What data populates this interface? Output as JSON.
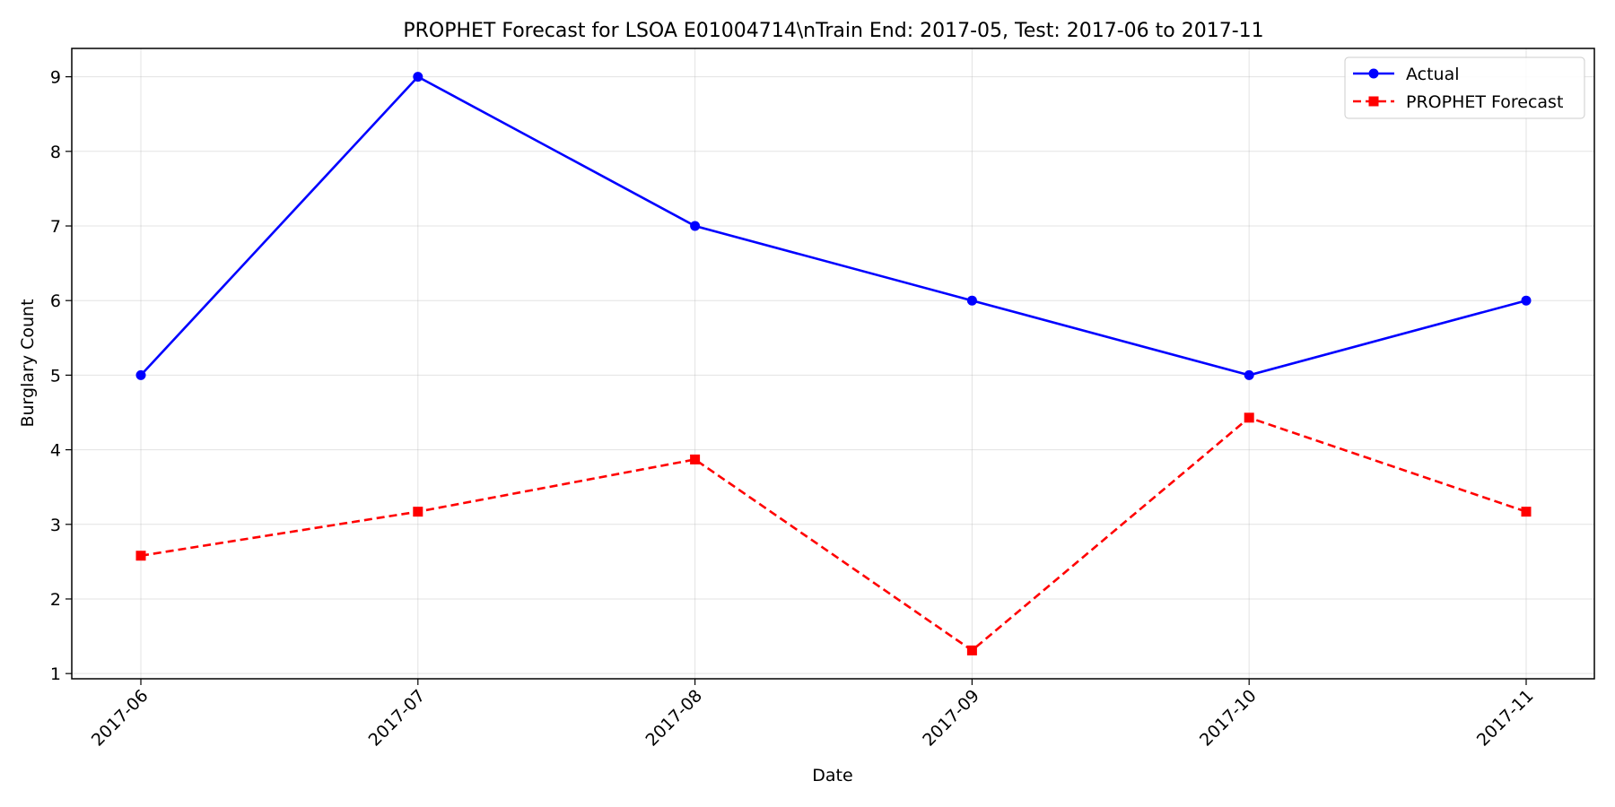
{
  "chart_data": {
    "type": "line",
    "title": "PROPHET Forecast for LSOA E01004714\\nTrain End: 2017-05, Test: 2017-06 to 2017-11",
    "xlabel": "Date",
    "ylabel": "Burglary Count",
    "categories": [
      "2017-06",
      "2017-07",
      "2017-08",
      "2017-09",
      "2017-10",
      "2017-11"
    ],
    "ylim": [
      0.93,
      9.38
    ],
    "yticks": [
      1,
      2,
      3,
      4,
      5,
      6,
      7,
      8,
      9
    ],
    "grid": true,
    "legend_position": "top-right",
    "series": [
      {
        "name": "Actual",
        "values": [
          5,
          9,
          7,
          6,
          5,
          6
        ],
        "color": "#0000ff",
        "line_style": "solid",
        "marker": "circle"
      },
      {
        "name": "PROPHET Forecast",
        "values": [
          2.58,
          3.17,
          3.87,
          1.31,
          4.43,
          3.17
        ],
        "color": "#ff0000",
        "line_style": "dashed",
        "marker": "square"
      }
    ]
  }
}
